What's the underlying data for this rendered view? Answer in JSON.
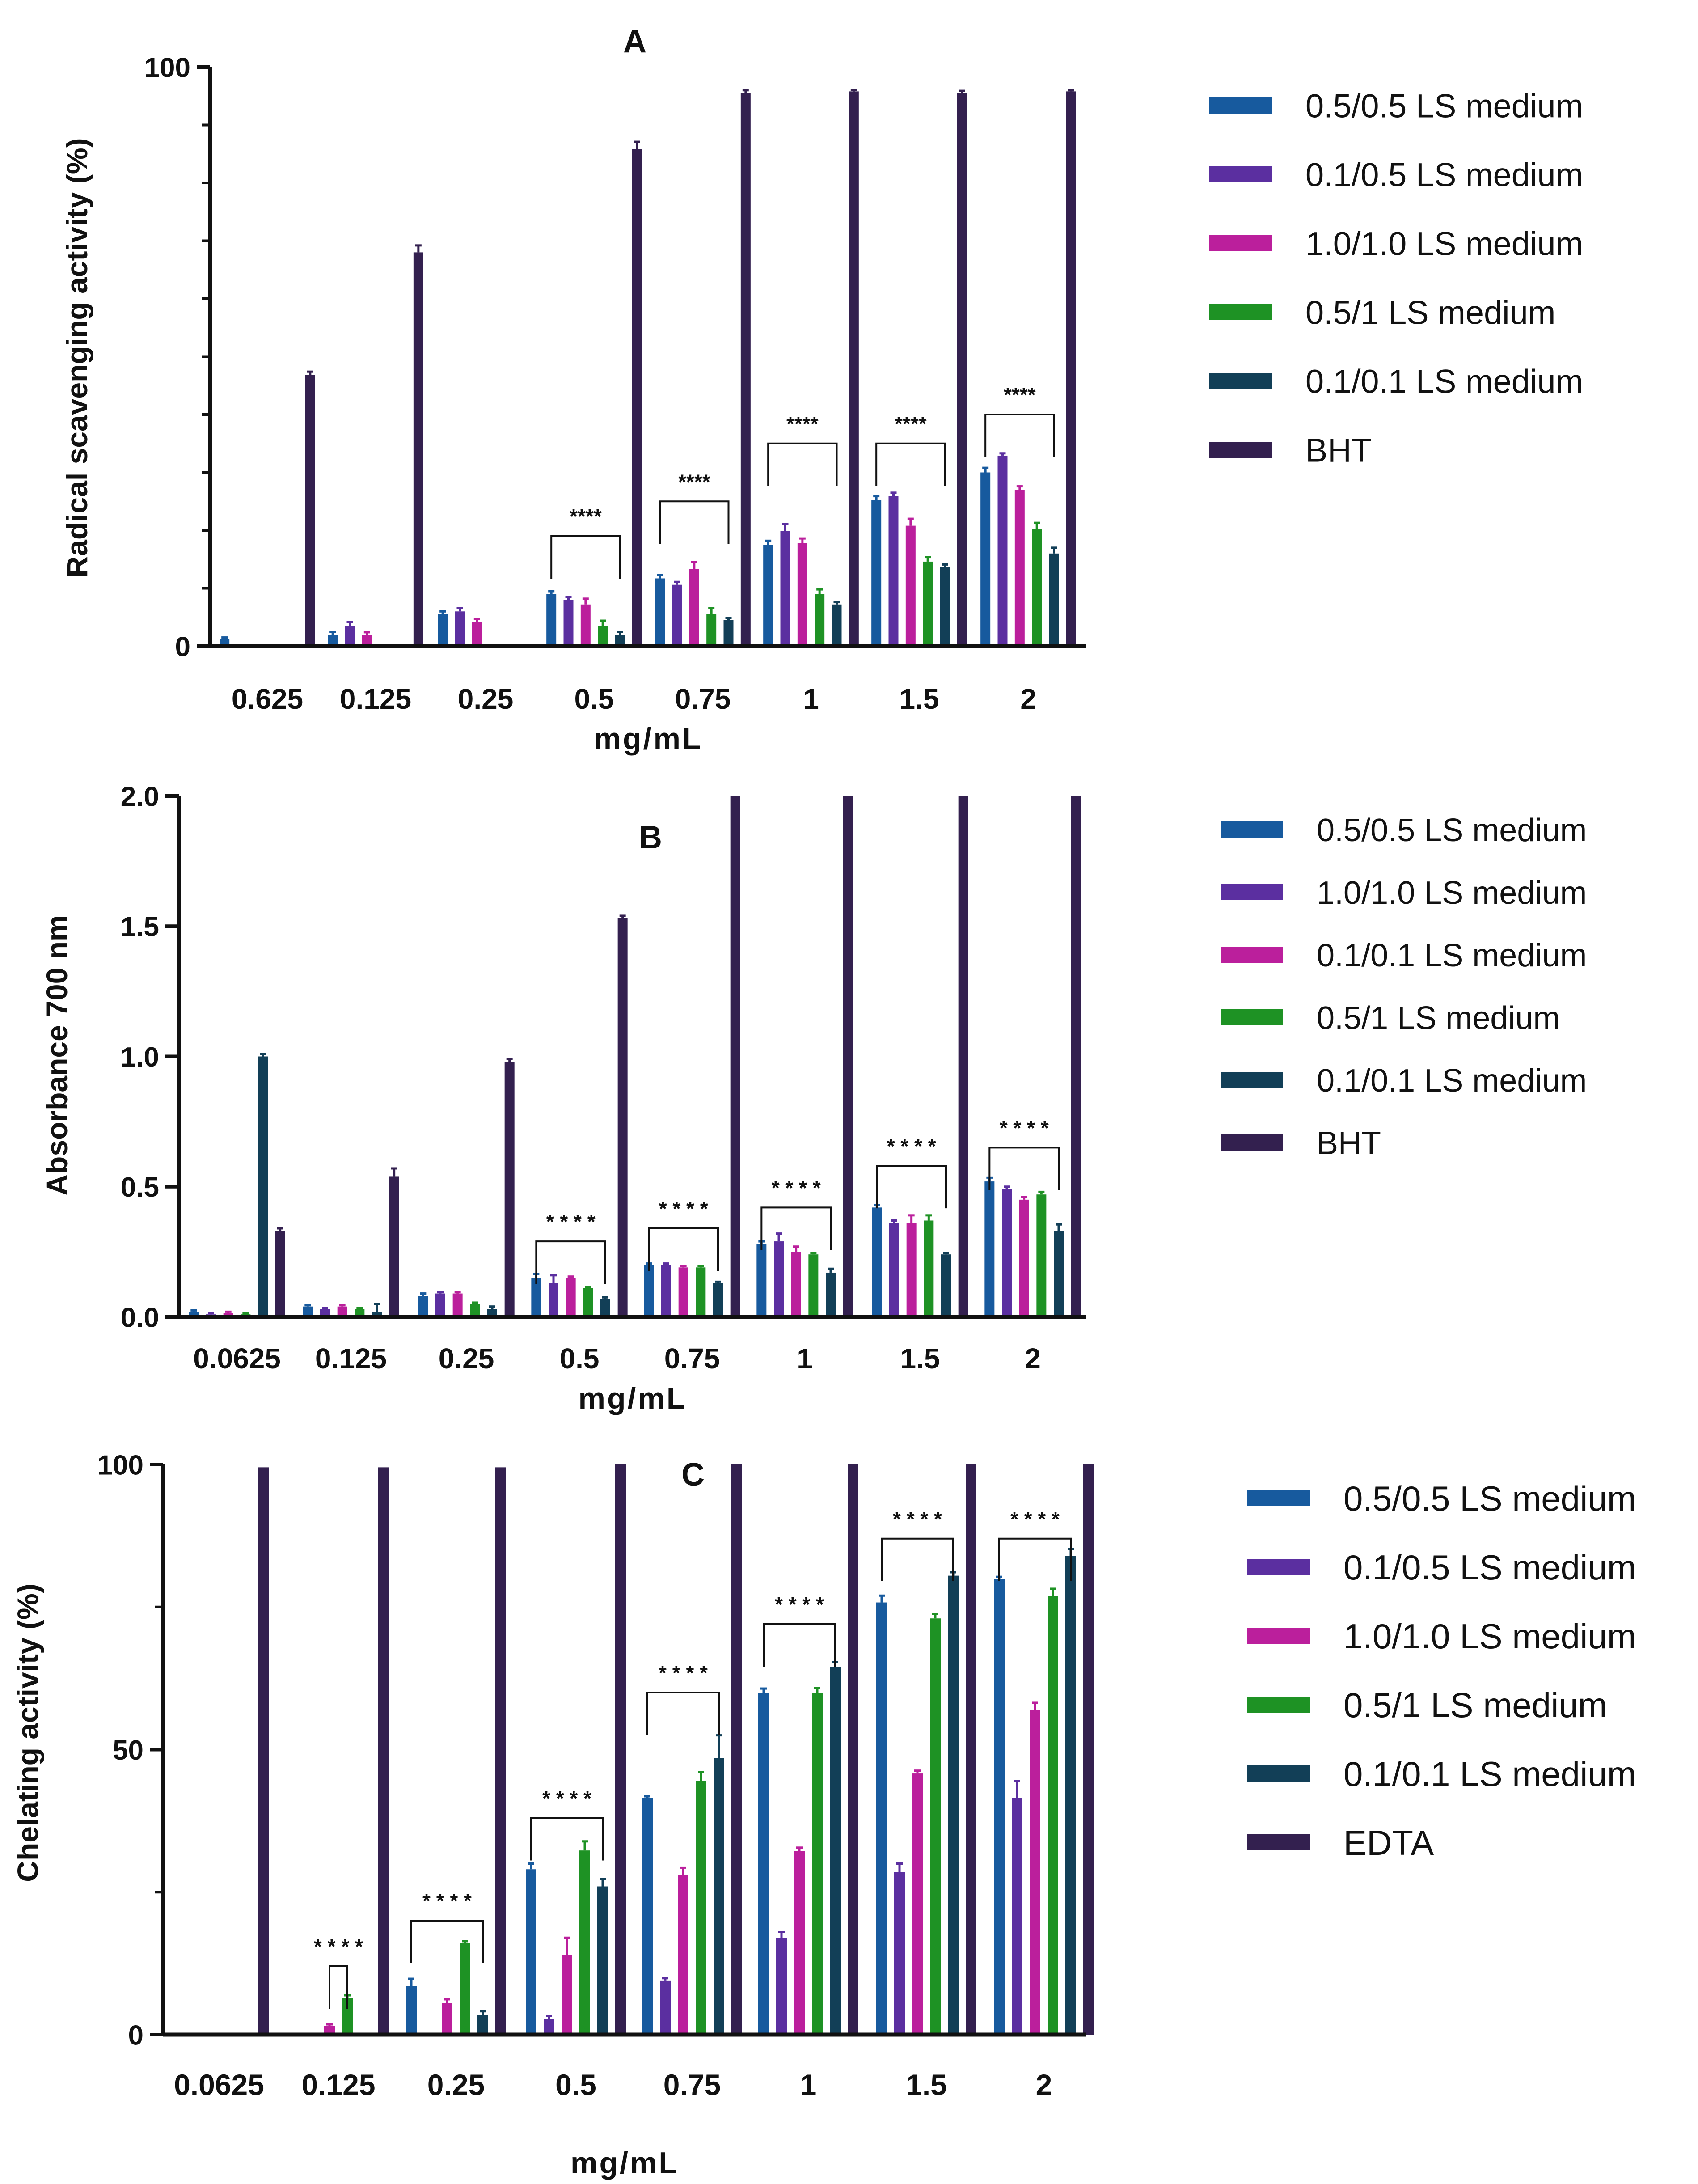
{
  "colors": {
    "blue": "#175a9e",
    "purple": "#5b2fa0",
    "magenta": "#bb1f9c",
    "green": "#1e9224",
    "darkteal": "#123f57",
    "darkplum": "#33204f"
  },
  "chart_data": [
    {
      "panel": "A",
      "type": "bar",
      "title": "A",
      "xlabel": "mg/mL",
      "ylabel": "Radical scavenging activity (%)",
      "ylim": [
        0,
        100
      ],
      "yticks": [
        "0",
        "100"
      ],
      "categories": [
        "0.625",
        "0.125",
        "0.25",
        "0.5",
        "0.75",
        "1",
        "1.5",
        "2"
      ],
      "series": [
        {
          "name": "0.5/0.5 LS medium",
          "color": "blue",
          "values": [
            1.2,
            2.0,
            5.5,
            9.0,
            11.7,
            17.5,
            25.2,
            30.0
          ],
          "errors": [
            0.3,
            0.5,
            0.5,
            0.5,
            0.6,
            0.7,
            0.7,
            0.8
          ]
        },
        {
          "name": "0.1/0.5 LS medium",
          "color": "purple",
          "values": [
            0,
            3.5,
            6.0,
            8.0,
            10.6,
            19.9,
            25.9,
            32.9
          ],
          "errors": [
            0,
            0.7,
            0.6,
            0.5,
            0.5,
            1.2,
            0.6,
            0.4
          ]
        },
        {
          "name": "1.0/1.0 LS medium",
          "color": "magenta",
          "values": [
            0,
            2.0,
            4.2,
            7.2,
            13.3,
            17.8,
            20.8,
            27.0
          ],
          "errors": [
            0,
            0.4,
            0.5,
            1.0,
            1.2,
            0.8,
            1.2,
            0.6
          ]
        },
        {
          "name": "0.5/1 LS medium",
          "color": "green",
          "values": [
            0,
            0,
            0,
            3.5,
            5.6,
            9.0,
            14.6,
            20.2
          ],
          "errors": [
            0,
            0,
            0,
            0.9,
            1.0,
            0.8,
            0.8,
            1.1
          ]
        },
        {
          "name": "0.1/0.1 LS medium",
          "color": "darkteal",
          "values": [
            0,
            0,
            0,
            2.0,
            4.5,
            7.2,
            13.7,
            16.0
          ],
          "errors": [
            0,
            0,
            0,
            0.5,
            0.4,
            0.4,
            0.4,
            1.0
          ]
        },
        {
          "name": "BHT",
          "color": "darkplum",
          "values": [
            46.8,
            68.0,
            0,
            85.8,
            95.5,
            95.8,
            95.5,
            95.8
          ],
          "errors": [
            0.6,
            1.2,
            0,
            1.3,
            0.5,
            0.3,
            0.4,
            0.2
          ]
        }
      ],
      "significance": [
        {
          "category": "0.5",
          "from": 0,
          "to": 4,
          "label": "****",
          "level": 19
        },
        {
          "category": "0.75",
          "from": 0,
          "to": 4,
          "label": "****",
          "level": 25
        },
        {
          "category": "1",
          "from": 0,
          "to": 4,
          "label": "****",
          "level": 35
        },
        {
          "category": "1.5",
          "from": 0,
          "to": 4,
          "label": "****",
          "level": 35
        },
        {
          "category": "2",
          "from": 0,
          "to": 4,
          "label": "****",
          "level": 40
        }
      ]
    },
    {
      "panel": "B",
      "type": "bar",
      "title": "B",
      "xlabel": "mg/mL",
      "ylabel": "Absorbance 700 nm",
      "ylim": [
        0,
        2.0
      ],
      "yticks": [
        "0.0",
        "0.5",
        "1.0",
        "1.5",
        "2.0"
      ],
      "categories": [
        "0.0625",
        "0.125",
        "0.25",
        "0.5",
        "0.75",
        "1",
        "1.5",
        "2"
      ],
      "series": [
        {
          "name": "0.5/0.5 LS medium",
          "color": "blue",
          "values": [
            0.02,
            0.04,
            0.08,
            0.15,
            0.2,
            0.28,
            0.42,
            0.52
          ],
          "errors": [
            0.005,
            0.005,
            0.01,
            0.015,
            0.005,
            0.01,
            0.01,
            0.015
          ]
        },
        {
          "name": "1.0/1.0 LS medium",
          "color": "purple",
          "values": [
            0.01,
            0.03,
            0.09,
            0.13,
            0.2,
            0.29,
            0.36,
            0.49
          ],
          "errors": [
            0.005,
            0.005,
            0.005,
            0.03,
            0.005,
            0.03,
            0.01,
            0.01
          ]
        },
        {
          "name": "0.1/0.1 LS medium",
          "color": "magenta",
          "values": [
            0.015,
            0.04,
            0.09,
            0.15,
            0.19,
            0.25,
            0.36,
            0.45
          ],
          "errors": [
            0.005,
            0.005,
            0.005,
            0.005,
            0.005,
            0.02,
            0.03,
            0.01
          ]
        },
        {
          "name": "0.5/1 LS medium",
          "color": "green",
          "values": [
            0.01,
            0.03,
            0.05,
            0.11,
            0.19,
            0.24,
            0.37,
            0.47
          ],
          "errors": [
            0.003,
            0.005,
            0.005,
            0.005,
            0.005,
            0.005,
            0.02,
            0.01
          ]
        },
        {
          "name": "0.1/0.1 LS medium",
          "color": "darkteal",
          "values": [
            1.0,
            0.02,
            0.03,
            0.07,
            0.13,
            0.17,
            0.24,
            0.33
          ],
          "errors": [
            0.01,
            0.03,
            0.01,
            0.005,
            0.005,
            0.015,
            0.005,
            0.025
          ]
        },
        {
          "name": "BHT",
          "color": "darkplum",
          "values": [
            0.33,
            0.54,
            0.98,
            1.53,
            2.0,
            2.0,
            2.0,
            2.0
          ],
          "errors": [
            0.01,
            0.03,
            0.01,
            0.01,
            0,
            0,
            0,
            0
          ]
        }
      ],
      "significance": [
        {
          "category": "0.5",
          "from": 0,
          "to": 4,
          "label": "* * * *",
          "level": 0.29
        },
        {
          "category": "0.75",
          "from": 0,
          "to": 4,
          "label": "* * * *",
          "level": 0.34
        },
        {
          "category": "1",
          "from": 0,
          "to": 4,
          "label": "* * * *",
          "level": 0.42
        },
        {
          "category": "1.5",
          "from": 0,
          "to": 4,
          "label": "* * * *",
          "level": 0.58
        },
        {
          "category": "2",
          "from": 0,
          "to": 4,
          "label": "* * * *",
          "level": 0.65
        }
      ]
    },
    {
      "panel": "C",
      "type": "bar",
      "title": "C",
      "xlabel": "mg/mL",
      "ylabel": "Chelating activity (%)",
      "ylim": [
        0,
        100
      ],
      "yticks": [
        "0",
        "50",
        "100"
      ],
      "categories": [
        "0.0625",
        "0.125",
        "0.25",
        "0.5",
        "0.75",
        "1",
        "1.5",
        "2"
      ],
      "series": [
        {
          "name": "0.5/0.5 LS medium",
          "color": "blue",
          "values": [
            0,
            0,
            8.5,
            29.0,
            41.5,
            60.0,
            75.8,
            80.0
          ],
          "errors": [
            0,
            0,
            1.3,
            1.0,
            0.3,
            0.7,
            1.2,
            0.3
          ]
        },
        {
          "name": "0.1/0.5 LS medium",
          "color": "purple",
          "values": [
            0,
            0,
            0,
            2.8,
            9.5,
            17.0,
            28.5,
            41.5
          ],
          "errors": [
            0,
            0,
            0,
            0.5,
            0.4,
            1.0,
            1.5,
            3.0
          ]
        },
        {
          "name": "1.0/1.0 LS medium",
          "color": "magenta",
          "values": [
            0,
            1.5,
            5.5,
            14.0,
            28.0,
            32.2,
            45.8,
            57.0
          ],
          "errors": [
            0,
            0.3,
            0.7,
            3.0,
            1.3,
            0.6,
            0.5,
            1.2
          ]
        },
        {
          "name": "0.5/1 LS medium",
          "color": "green",
          "values": [
            0,
            6.5,
            16.0,
            32.3,
            44.5,
            60.0,
            73.0,
            77.0
          ],
          "errors": [
            0,
            0.4,
            0.4,
            1.6,
            1.5,
            0.8,
            0.8,
            1.2
          ]
        },
        {
          "name": "0.1/0.1 LS medium",
          "color": "darkteal",
          "values": [
            0,
            0,
            3.5,
            26.0,
            48.5,
            64.5,
            80.5,
            84.0
          ],
          "errors": [
            0,
            0,
            0.6,
            1.3,
            4.0,
            0.8,
            0.6,
            1.2
          ]
        },
        {
          "name": "EDTA",
          "color": "darkplum",
          "values": [
            99.5,
            99.5,
            99.5,
            100,
            100,
            100,
            100,
            100
          ],
          "errors": [
            0,
            0,
            0,
            0,
            0,
            0,
            0,
            0
          ]
        }
      ],
      "significance": [
        {
          "category": "0.125",
          "from": 2,
          "to": 3,
          "label": "* * * *",
          "level": 12
        },
        {
          "category": "0.25",
          "from": 0,
          "to": 4,
          "label": "* * * *",
          "level": 20
        },
        {
          "category": "0.5",
          "from": 0,
          "to": 4,
          "label": "* * * *",
          "level": 38
        },
        {
          "category": "0.75",
          "from": 0,
          "to": 4,
          "label": "* * * *",
          "level": 60
        },
        {
          "category": "1",
          "from": 0,
          "to": 4,
          "label": "* * * *",
          "level": 72
        },
        {
          "category": "1.5",
          "from": 0,
          "to": 4,
          "label": "* * * *",
          "level": 87
        },
        {
          "category": "2",
          "from": 0,
          "to": 4,
          "label": "* * * *",
          "level": 87
        }
      ]
    }
  ]
}
